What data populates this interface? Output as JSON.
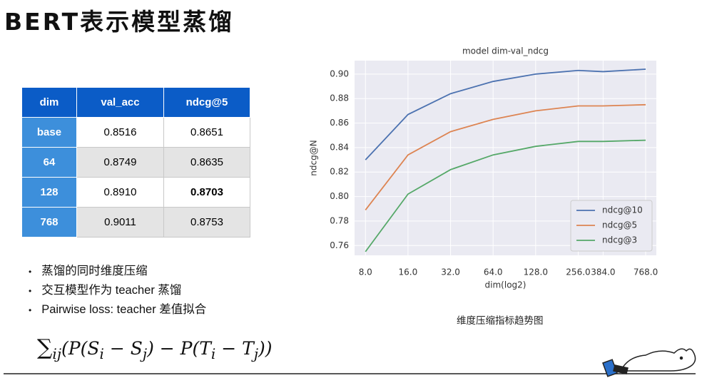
{
  "title": "BERT表示模型蒸馏",
  "table": {
    "header": [
      "dim",
      "val_acc",
      "ndcg@5"
    ],
    "rows": [
      [
        "base",
        "0.8516",
        "0.8651"
      ],
      [
        "64",
        "0.8749",
        "0.8635"
      ],
      [
        "128",
        "0.8910",
        "0.8703"
      ],
      [
        "768",
        "0.9011",
        "0.8753"
      ]
    ]
  },
  "bullets": [
    "蒸馏的同时维度压缩",
    "交互模型作为 teacher 蒸馏",
    "Pairwise loss: teacher 差值拟合"
  ],
  "formula": [
    "∑",
    "ij",
    "(P(S",
    "i",
    " − S",
    "j",
    ") − P(T",
    "i",
    " − T",
    "j",
    "))"
  ],
  "caption": "维度压缩指标趋势图",
  "chart_data": {
    "type": "line",
    "title": "model dim-val_ndcg",
    "x_label": "dim(log2)",
    "y_label": "ndcg@N",
    "x": [
      8,
      16,
      32,
      64,
      128,
      256,
      384,
      768
    ],
    "x_log2": true,
    "xlim": [
      6.7,
      914
    ],
    "ylim": [
      0.752,
      0.911
    ],
    "xticks": [
      {
        "value": 8,
        "label": "8.0"
      },
      {
        "value": 16,
        "label": "16.0"
      },
      {
        "value": 32,
        "label": "32.0"
      },
      {
        "value": 64,
        "label": "64.0"
      },
      {
        "value": 128,
        "label": "128.0"
      },
      {
        "value": 256,
        "label": "256.0"
      },
      {
        "value": 384,
        "label": "384.0"
      },
      {
        "value": 768,
        "label": "768.0"
      }
    ],
    "yticks": [
      {
        "value": 0.76,
        "label": "0.76"
      },
      {
        "value": 0.78,
        "label": "0.78"
      },
      {
        "value": 0.8,
        "label": "0.80"
      },
      {
        "value": 0.82,
        "label": "0.82"
      },
      {
        "value": 0.84,
        "label": "0.84"
      },
      {
        "value": 0.86,
        "label": "0.86"
      },
      {
        "value": 0.88,
        "label": "0.88"
      },
      {
        "value": 0.9,
        "label": "0.90"
      }
    ],
    "grid": true,
    "legend": "lower right",
    "series": [
      {
        "name": "ndcg@10",
        "color": "#4c72b0",
        "values": [
          0.83,
          0.867,
          0.884,
          0.894,
          0.9,
          0.903,
          0.902,
          0.904
        ]
      },
      {
        "name": "ndcg@5",
        "color": "#dd8452",
        "values": [
          0.789,
          0.834,
          0.853,
          0.863,
          0.87,
          0.874,
          0.874,
          0.875
        ]
      },
      {
        "name": "ndcg@3",
        "color": "#55a868",
        "values": [
          0.755,
          0.802,
          0.822,
          0.834,
          0.841,
          0.845,
          0.845,
          0.846
        ]
      }
    ]
  }
}
